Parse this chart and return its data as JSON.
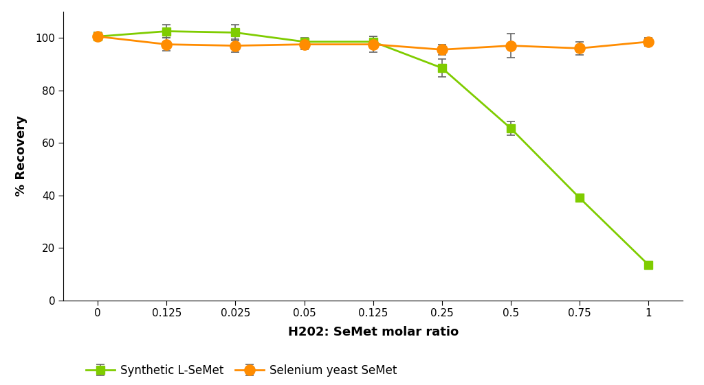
{
  "x_positions": [
    0,
    1,
    2,
    3,
    4,
    5,
    6,
    7,
    8
  ],
  "x_labels": [
    "0",
    "0.125",
    "0.025",
    "0.05",
    "0.125",
    "0.25",
    "0.5",
    "0.75",
    "1"
  ],
  "synthetic_y": [
    100.5,
    102.5,
    102.0,
    98.5,
    98.5,
    88.5,
    65.5,
    39.0,
    13.5
  ],
  "synthetic_yerr": [
    1.5,
    2.5,
    3.0,
    1.5,
    2.0,
    3.5,
    2.5,
    1.5,
    1.0
  ],
  "selenium_y": [
    100.5,
    97.5,
    97.0,
    97.5,
    97.5,
    95.5,
    97.0,
    96.0,
    98.5
  ],
  "selenium_yerr": [
    1.0,
    2.5,
    2.5,
    2.0,
    3.0,
    2.0,
    4.5,
    2.5,
    1.5
  ],
  "synthetic_color": "#7FCC00",
  "selenium_color": "#FF8C00",
  "synthetic_label": "Synthetic L-SeMet",
  "selenium_label": "Selenium yeast SeMet",
  "xlabel": "H202: SeMet molar ratio",
  "ylabel": "% Recovery",
  "ylim": [
    0,
    110
  ],
  "xlim": [
    -0.5,
    8.5
  ],
  "yticks": [
    0,
    20,
    40,
    60,
    80,
    100
  ],
  "background_color": "#ffffff",
  "marker_size": 9,
  "linewidth": 2.0,
  "capsize": 4,
  "xlabel_fontsize": 13,
  "ylabel_fontsize": 13,
  "tick_fontsize": 11,
  "legend_fontsize": 12
}
